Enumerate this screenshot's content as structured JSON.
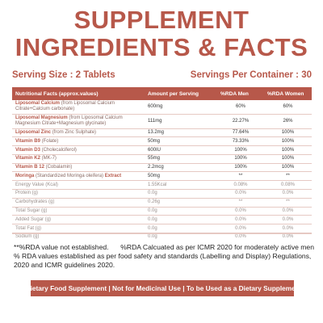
{
  "header": {
    "title_line1": "SUPPLEMENT",
    "title_line2": "INGREDIENTS & FACTS"
  },
  "serving": {
    "size": "Serving Size : 2 Tablets",
    "per_container": "Servings Per Container : 30"
  },
  "table": {
    "headers": [
      "Nutritional Facts (approx.values)",
      "Amount per Serving",
      "%RDA Men",
      "%RDA Women"
    ],
    "rows": [
      {
        "name": "Liposomal Calcium",
        "detail": "(from Liposomal Calcium Citrate+Calcium carbonate)",
        "amount": "600mg",
        "men": "60%",
        "women": "60%"
      },
      {
        "name": "Liposomal Magnesium",
        "detail": "(from Liposomal Calcium Magnesium Citrate+Magnesium glycinate)",
        "amount": "111mg",
        "men": "22.27%",
        "women": "26%"
      },
      {
        "name": "Liposomal Zinc",
        "detail": "(from Zinc Sulphate)",
        "amount": "13.2mg",
        "men": "77.64%",
        "women": "100%"
      },
      {
        "name": "Vitamin B9",
        "detail": "(Folate)",
        "amount": "50mg",
        "men": "73.33%",
        "women": "100%"
      },
      {
        "name": "Vitamin D3",
        "detail": "(Cholecalciferol)",
        "amount": "600IU",
        "men": "100%",
        "women": "100%"
      },
      {
        "name": "Vitamin K2",
        "detail": "(MK-7)",
        "amount": "55mg",
        "men": "100%",
        "women": "100%"
      },
      {
        "name": "Vitamin B 12",
        "detail": "(Cobalamin)",
        "amount": "2.2mcg",
        "men": "100%",
        "women": "100%"
      },
      {
        "name": "Moringa",
        "detail": "(Standardized Moringa oleifera)",
        "name_suffix": " Extract",
        "amount": "50mg",
        "men": "**",
        "women": "**"
      },
      {
        "name": "Energy Value (Kcal)",
        "detail": "",
        "amount": "1.55Kcal",
        "men": "0.08%",
        "women": "0.08%",
        "light": true
      },
      {
        "name": "Protein (g)",
        "detail": "",
        "amount": "0.0g",
        "men": "0.0%",
        "women": "0.0%",
        "light": true
      },
      {
        "name": "Carbohydrates (g)",
        "detail": "",
        "amount": "0.26g",
        "men": "**",
        "women": "**",
        "light": true
      },
      {
        "name": "Total Sugar (g)",
        "detail": "",
        "amount": "0.0g",
        "men": "0.0%",
        "women": "0.0%",
        "light": true
      },
      {
        "name": "Added Sugar (g)",
        "detail": "",
        "amount": "0.0g",
        "men": "0.0%",
        "women": "0.0%",
        "light": true
      },
      {
        "name": "Total Fat (g)",
        "detail": "",
        "amount": "0.0g",
        "men": "0.0%",
        "women": "0.0%",
        "light": true
      },
      {
        "name": "Sodium (g)",
        "detail": "",
        "amount": "0.0g",
        "men": "0.0%",
        "women": "0.0%",
        "light": true
      }
    ]
  },
  "footnotes": {
    "not_established": "**%RDA value not established.",
    "rda_calc": "%RDA Calcuated as per ICMR 2020 for moderately active men",
    "rda_values": "% RDA values established as per food safety and standards (Labelling and Display) Regulations, 2020 and ICMR guidelines 2020."
  },
  "banner": {
    "text": "*Dietary Food Supplement | Not for Medicinal Use | To be Used as a Dietary Supplement"
  },
  "colors": {
    "accent": "#b7584a"
  }
}
